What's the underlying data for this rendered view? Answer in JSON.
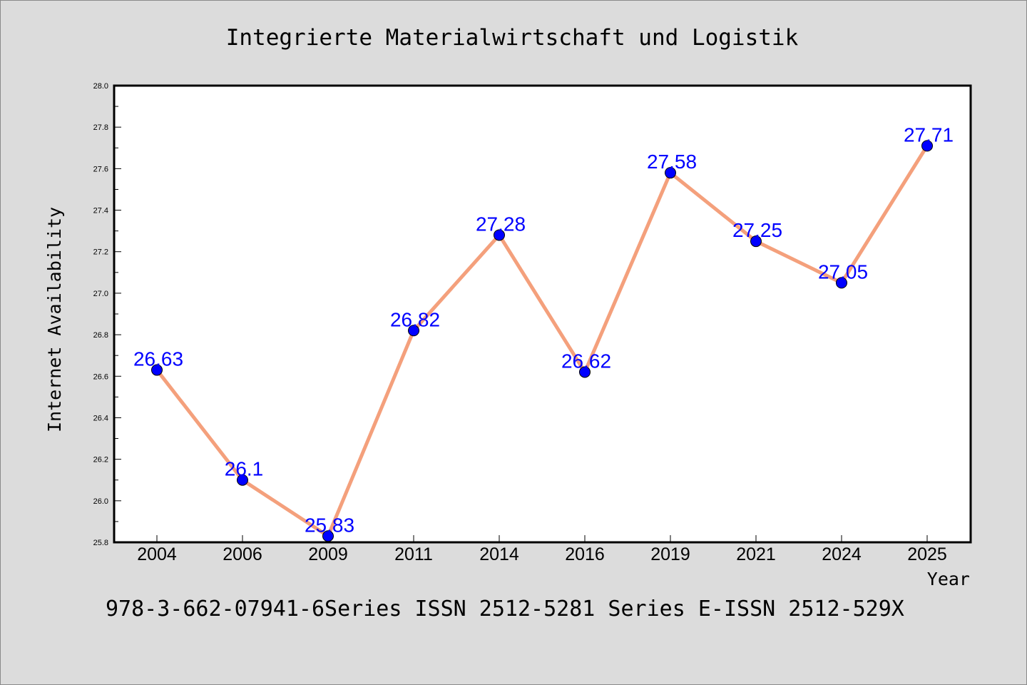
{
  "chart_data": {
    "type": "line",
    "title": "Integrierte Materialwirtschaft und Logistik",
    "xlabel": "Year",
    "ylabel": "Internet Availability",
    "categories": [
      "2004",
      "2006",
      "2009",
      "2011",
      "2014",
      "2016",
      "2019",
      "2021",
      "2024",
      "2025"
    ],
    "series": [
      {
        "values": [
          26.63,
          26.1,
          25.83,
          26.82,
          27.28,
          26.62,
          27.58,
          27.25,
          27.05,
          27.71
        ],
        "data_labels": [
          "26.63",
          "26.1",
          "25.83",
          "26.82",
          "27.28",
          "26.62",
          "27.58",
          "27.25",
          "27.05",
          "27.71"
        ]
      }
    ],
    "ylim": [
      25.8,
      28.0
    ],
    "y_ticks": [
      "25.8",
      "26.0",
      "26.2",
      "26.4",
      "26.6",
      "26.8",
      "27.0",
      "27.2",
      "27.4",
      "27.6",
      "27.8",
      "28.0"
    ],
    "grid": false,
    "legend": "none",
    "colors": {
      "line": "#f4a07c",
      "marker": "#0000ff",
      "data_label": "#0000ff",
      "background": "#dcdcdc",
      "plot_background": "#ffffff"
    }
  },
  "footer_text": "978-3-662-07941-6Series ISSN 2512-5281 Series E-ISSN 2512-529X"
}
